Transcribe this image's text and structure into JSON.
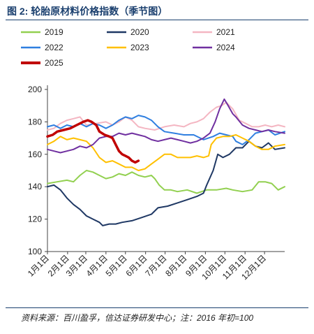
{
  "figure": {
    "title": "图 2:  轮胎原材料价格指数（季节图）",
    "source": "资料来源：百川盈孚，信达证券研发中心；注：2016 年初=100"
  },
  "chart_data": {
    "type": "line",
    "title": "",
    "xlabel": "",
    "ylabel": "",
    "ylim": [
      100,
      200
    ],
    "yticks": [
      100,
      120,
      140,
      160,
      180,
      200
    ],
    "x_tick_labels": [
      "1月1日",
      "2月1日",
      "3月1日",
      "4月1日",
      "5月1日",
      "6月1日",
      "7月1日",
      "8月1日",
      "9月1日",
      "10月1日",
      "11月1日",
      "12月1日"
    ],
    "x_domain_days": [
      0,
      365
    ],
    "grid": false,
    "legend": "top, 3 columns",
    "series": [
      {
        "name": "2019",
        "color": "#92d050",
        "width": 2,
        "points": [
          [
            0,
            142
          ],
          [
            15,
            143
          ],
          [
            30,
            144
          ],
          [
            40,
            143
          ],
          [
            50,
            147
          ],
          [
            60,
            150
          ],
          [
            70,
            149
          ],
          [
            80,
            147
          ],
          [
            90,
            145
          ],
          [
            100,
            146
          ],
          [
            110,
            148
          ],
          [
            120,
            147
          ],
          [
            130,
            149
          ],
          [
            140,
            147
          ],
          [
            150,
            146
          ],
          [
            160,
            147
          ],
          [
            165,
            145
          ],
          [
            172,
            141
          ],
          [
            180,
            138
          ],
          [
            190,
            138
          ],
          [
            200,
            137
          ],
          [
            215,
            138
          ],
          [
            230,
            136
          ],
          [
            245,
            138
          ],
          [
            260,
            138
          ],
          [
            275,
            139
          ],
          [
            285,
            138
          ],
          [
            300,
            137
          ],
          [
            315,
            138
          ],
          [
            325,
            143
          ],
          [
            335,
            143
          ],
          [
            345,
            142
          ],
          [
            355,
            138
          ],
          [
            365,
            140
          ]
        ]
      },
      {
        "name": "2020",
        "color": "#1f3864",
        "width": 2,
        "points": [
          [
            0,
            140
          ],
          [
            10,
            141
          ],
          [
            20,
            138
          ],
          [
            30,
            133
          ],
          [
            40,
            129
          ],
          [
            50,
            126
          ],
          [
            60,
            122
          ],
          [
            70,
            120
          ],
          [
            80,
            118
          ],
          [
            85,
            116
          ],
          [
            95,
            117
          ],
          [
            105,
            117
          ],
          [
            115,
            118
          ],
          [
            130,
            119
          ],
          [
            145,
            121
          ],
          [
            160,
            123
          ],
          [
            170,
            127
          ],
          [
            185,
            128
          ],
          [
            200,
            130
          ],
          [
            215,
            132
          ],
          [
            230,
            134
          ],
          [
            240,
            136
          ],
          [
            245,
            141
          ],
          [
            255,
            150
          ],
          [
            262,
            160
          ],
          [
            270,
            158
          ],
          [
            280,
            160
          ],
          [
            290,
            164
          ],
          [
            300,
            164
          ],
          [
            310,
            168
          ],
          [
            320,
            165
          ],
          [
            330,
            164
          ],
          [
            340,
            167
          ],
          [
            350,
            163
          ],
          [
            365,
            164
          ]
        ]
      },
      {
        "name": "2021",
        "color": "#f4b6c2",
        "width": 2,
        "points": [
          [
            0,
            175
          ],
          [
            10,
            176
          ],
          [
            20,
            179
          ],
          [
            30,
            181
          ],
          [
            40,
            182
          ],
          [
            50,
            183
          ],
          [
            60,
            178
          ],
          [
            75,
            179
          ],
          [
            90,
            180
          ],
          [
            100,
            178
          ],
          [
            110,
            180
          ],
          [
            120,
            183
          ],
          [
            130,
            181
          ],
          [
            140,
            177
          ],
          [
            150,
            176
          ],
          [
            165,
            175
          ],
          [
            180,
            177
          ],
          [
            195,
            178
          ],
          [
            210,
            177
          ],
          [
            220,
            179
          ],
          [
            230,
            180
          ],
          [
            240,
            182
          ],
          [
            250,
            186
          ],
          [
            260,
            189
          ],
          [
            268,
            190
          ],
          [
            275,
            192
          ],
          [
            285,
            188
          ],
          [
            295,
            181
          ],
          [
            305,
            179
          ],
          [
            315,
            177
          ],
          [
            325,
            177
          ],
          [
            335,
            178
          ],
          [
            345,
            177
          ],
          [
            355,
            178
          ],
          [
            365,
            177
          ]
        ]
      },
      {
        "name": "2022",
        "color": "#2f7fe0",
        "width": 2,
        "points": [
          [
            0,
            177
          ],
          [
            10,
            178
          ],
          [
            20,
            176
          ],
          [
            30,
            178
          ],
          [
            40,
            177
          ],
          [
            50,
            179
          ],
          [
            60,
            177
          ],
          [
            70,
            179
          ],
          [
            80,
            178
          ],
          [
            90,
            176
          ],
          [
            100,
            178
          ],
          [
            110,
            181
          ],
          [
            120,
            183
          ],
          [
            130,
            182
          ],
          [
            140,
            184
          ],
          [
            150,
            183
          ],
          [
            160,
            181
          ],
          [
            170,
            177
          ],
          [
            180,
            174
          ],
          [
            195,
            173
          ],
          [
            210,
            172
          ],
          [
            225,
            172
          ],
          [
            240,
            169
          ],
          [
            255,
            171
          ],
          [
            265,
            173
          ],
          [
            275,
            172
          ],
          [
            285,
            171
          ],
          [
            290,
            168
          ],
          [
            300,
            166
          ],
          [
            310,
            169
          ],
          [
            320,
            173
          ],
          [
            330,
            174
          ],
          [
            340,
            175
          ],
          [
            350,
            172
          ],
          [
            365,
            174
          ]
        ]
      },
      {
        "name": "2023",
        "color": "#ffc000",
        "width": 2,
        "points": [
          [
            0,
            166
          ],
          [
            10,
            168
          ],
          [
            20,
            171
          ],
          [
            30,
            169
          ],
          [
            40,
            170
          ],
          [
            50,
            169
          ],
          [
            60,
            168
          ],
          [
            70,
            164
          ],
          [
            80,
            158
          ],
          [
            90,
            155
          ],
          [
            100,
            156
          ],
          [
            110,
            154
          ],
          [
            120,
            152
          ],
          [
            130,
            152
          ],
          [
            140,
            150
          ],
          [
            150,
            151
          ],
          [
            160,
            154
          ],
          [
            170,
            157
          ],
          [
            180,
            160
          ],
          [
            190,
            160
          ],
          [
            200,
            158
          ],
          [
            210,
            158
          ],
          [
            220,
            158
          ],
          [
            230,
            159
          ],
          [
            240,
            158
          ],
          [
            248,
            159
          ],
          [
            252,
            166
          ],
          [
            260,
            170
          ],
          [
            270,
            171
          ],
          [
            280,
            171
          ],
          [
            290,
            172
          ],
          [
            300,
            170
          ],
          [
            310,
            168
          ],
          [
            320,
            165
          ],
          [
            330,
            163
          ],
          [
            340,
            163
          ],
          [
            350,
            165
          ],
          [
            365,
            166
          ]
        ]
      },
      {
        "name": "2024",
        "color": "#7030a0",
        "width": 2,
        "points": [
          [
            0,
            163
          ],
          [
            10,
            162
          ],
          [
            20,
            161
          ],
          [
            30,
            162
          ],
          [
            40,
            163
          ],
          [
            50,
            165
          ],
          [
            60,
            164
          ],
          [
            70,
            166
          ],
          [
            80,
            170
          ],
          [
            90,
            171
          ],
          [
            100,
            171
          ],
          [
            110,
            173
          ],
          [
            120,
            172
          ],
          [
            130,
            173
          ],
          [
            140,
            172
          ],
          [
            150,
            171
          ],
          [
            160,
            169
          ],
          [
            170,
            168
          ],
          [
            180,
            169
          ],
          [
            190,
            170
          ],
          [
            200,
            169
          ],
          [
            210,
            168
          ],
          [
            220,
            167
          ],
          [
            230,
            168
          ],
          [
            240,
            170
          ],
          [
            250,
            173
          ],
          [
            258,
            180
          ],
          [
            265,
            188
          ],
          [
            272,
            194
          ],
          [
            278,
            190
          ],
          [
            285,
            185
          ],
          [
            290,
            183
          ],
          [
            300,
            178
          ],
          [
            310,
            176
          ],
          [
            320,
            175
          ],
          [
            330,
            174
          ],
          [
            340,
            175
          ],
          [
            350,
            174
          ],
          [
            365,
            173
          ]
        ]
      },
      {
        "name": "2025",
        "color": "#c00000",
        "width": 3.5,
        "points": [
          [
            0,
            171
          ],
          [
            8,
            172
          ],
          [
            15,
            174
          ],
          [
            25,
            175
          ],
          [
            35,
            176
          ],
          [
            45,
            178
          ],
          [
            55,
            180
          ],
          [
            62,
            181
          ],
          [
            68,
            180
          ],
          [
            75,
            178
          ],
          [
            80,
            174
          ],
          [
            88,
            172
          ],
          [
            95,
            171
          ],
          [
            100,
            170
          ],
          [
            105,
            166
          ],
          [
            110,
            162
          ],
          [
            115,
            160
          ],
          [
            120,
            159
          ],
          [
            125,
            158
          ],
          [
            130,
            156
          ],
          [
            135,
            155
          ],
          [
            140,
            156
          ]
        ]
      }
    ]
  }
}
